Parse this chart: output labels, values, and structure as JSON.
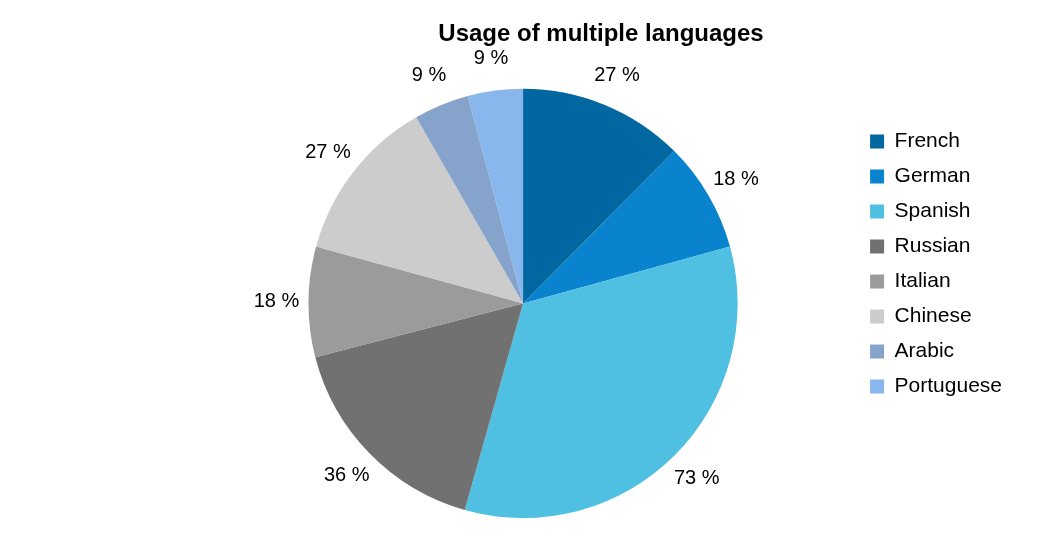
{
  "chart_data": {
    "type": "pie",
    "title": "Usage of multiple languages",
    "categories": [
      "French",
      "German",
      "Spanish",
      "Russian",
      "Italian",
      "Chinese",
      "Arabic",
      "Portuguese"
    ],
    "values": [
      27,
      18,
      73,
      36,
      18,
      27,
      9,
      9
    ],
    "value_labels": [
      "27 %",
      "18 %",
      "73 %",
      "36 %",
      "18 %",
      "27 %",
      "9 %",
      "9 %"
    ],
    "colors": [
      "#0067a0",
      "#0a83cf",
      "#4fbfe2",
      "#717171",
      "#9b9b9b",
      "#cccccc",
      "#86a3cb",
      "#89b6ec"
    ],
    "legend": "right"
  }
}
